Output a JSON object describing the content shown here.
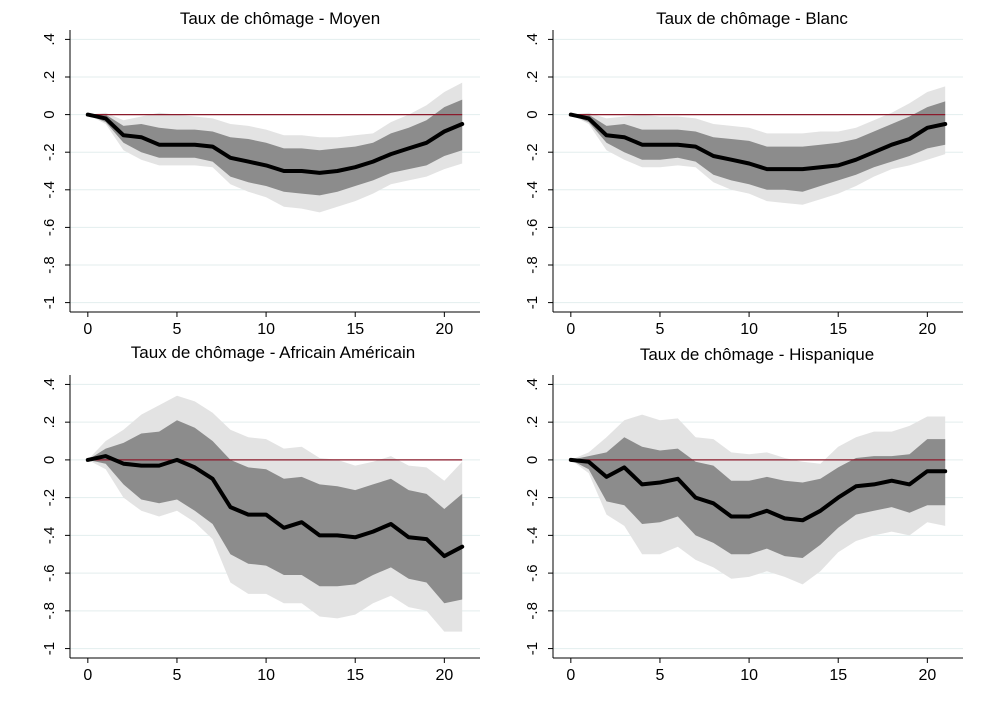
{
  "chart_data": [
    {
      "type": "line",
      "title": "Taux de chômage - Moyen",
      "x": [
        0,
        1,
        2,
        3,
        4,
        5,
        6,
        7,
        8,
        9,
        10,
        11,
        12,
        13,
        14,
        15,
        16,
        17,
        18,
        19,
        20,
        21
      ],
      "series": [
        {
          "role": "ci-outer-lower",
          "values": [
            0,
            -0.05,
            -0.19,
            -0.24,
            -0.27,
            -0.27,
            -0.27,
            -0.28,
            -0.37,
            -0.41,
            -0.44,
            -0.49,
            -0.5,
            -0.52,
            -0.49,
            -0.46,
            -0.42,
            -0.37,
            -0.35,
            -0.33,
            -0.29,
            -0.26
          ]
        },
        {
          "role": "ci-inner-lower",
          "values": [
            0,
            -0.04,
            -0.15,
            -0.2,
            -0.23,
            -0.23,
            -0.23,
            -0.25,
            -0.33,
            -0.36,
            -0.38,
            -0.41,
            -0.42,
            -0.43,
            -0.41,
            -0.38,
            -0.35,
            -0.31,
            -0.29,
            -0.27,
            -0.22,
            -0.19
          ]
        },
        {
          "role": "estimate",
          "values": [
            0,
            -0.02,
            -0.11,
            -0.12,
            -0.16,
            -0.16,
            -0.16,
            -0.17,
            -0.23,
            -0.25,
            -0.27,
            -0.3,
            -0.3,
            -0.31,
            -0.3,
            -0.28,
            -0.25,
            -0.21,
            -0.18,
            -0.15,
            -0.09,
            -0.05
          ]
        },
        {
          "role": "ci-inner-upper",
          "values": [
            0,
            0,
            -0.06,
            -0.05,
            -0.07,
            -0.08,
            -0.08,
            -0.09,
            -0.12,
            -0.13,
            -0.15,
            -0.18,
            -0.18,
            -0.19,
            -0.18,
            -0.17,
            -0.15,
            -0.1,
            -0.07,
            -0.03,
            0.04,
            0.08
          ]
        },
        {
          "role": "ci-outer-upper",
          "values": [
            0,
            0.01,
            -0.03,
            -0.01,
            0.01,
            0,
            -0.01,
            -0.02,
            -0.05,
            -0.06,
            -0.08,
            -0.11,
            -0.11,
            -0.12,
            -0.12,
            -0.11,
            -0.1,
            -0.04,
            0,
            0.05,
            0.12,
            0.17
          ]
        }
      ],
      "reference_line": 0,
      "xlim": [
        -1,
        22
      ],
      "ylim": [
        -1.05,
        0.45
      ],
      "xticks": [
        0,
        5,
        10,
        15,
        20
      ],
      "xtick_labels": [
        "0",
        "5",
        "10",
        "15",
        "20"
      ],
      "yticks": [
        0.4,
        0.2,
        0,
        -0.2,
        -0.4,
        -0.6,
        -0.8,
        -1
      ],
      "ytick_labels": [
        ".4",
        ".2",
        "0",
        "-.2",
        "-.4",
        "-.6",
        "-.8",
        "-1"
      ],
      "grid": "horizontal"
    },
    {
      "type": "line",
      "title": "Taux de chômage - Blanc",
      "x": [
        0,
        1,
        2,
        3,
        4,
        5,
        6,
        7,
        8,
        9,
        10,
        11,
        12,
        13,
        14,
        15,
        16,
        17,
        18,
        19,
        20,
        21
      ],
      "series": [
        {
          "role": "ci-outer-lower",
          "values": [
            0,
            -0.05,
            -0.19,
            -0.24,
            -0.28,
            -0.28,
            -0.27,
            -0.28,
            -0.36,
            -0.4,
            -0.42,
            -0.46,
            -0.47,
            -0.48,
            -0.45,
            -0.42,
            -0.38,
            -0.33,
            -0.29,
            -0.27,
            -0.24,
            -0.21
          ]
        },
        {
          "role": "ci-inner-lower",
          "values": [
            0,
            -0.04,
            -0.15,
            -0.2,
            -0.24,
            -0.24,
            -0.23,
            -0.25,
            -0.32,
            -0.35,
            -0.37,
            -0.4,
            -0.4,
            -0.41,
            -0.38,
            -0.35,
            -0.32,
            -0.28,
            -0.25,
            -0.22,
            -0.18,
            -0.16
          ]
        },
        {
          "role": "estimate",
          "values": [
            0,
            -0.02,
            -0.11,
            -0.12,
            -0.16,
            -0.16,
            -0.16,
            -0.17,
            -0.22,
            -0.24,
            -0.26,
            -0.29,
            -0.29,
            -0.29,
            -0.28,
            -0.27,
            -0.24,
            -0.2,
            -0.16,
            -0.13,
            -0.07,
            -0.05
          ]
        },
        {
          "role": "ci-inner-upper",
          "values": [
            0,
            0,
            -0.06,
            -0.05,
            -0.08,
            -0.08,
            -0.08,
            -0.09,
            -0.12,
            -0.13,
            -0.14,
            -0.17,
            -0.17,
            -0.17,
            -0.16,
            -0.15,
            -0.13,
            -0.09,
            -0.05,
            -0.01,
            0.04,
            0.07
          ]
        },
        {
          "role": "ci-outer-upper",
          "values": [
            0,
            0.01,
            -0.02,
            -0.01,
            0,
            -0.01,
            -0.01,
            -0.02,
            -0.05,
            -0.06,
            -0.07,
            -0.1,
            -0.1,
            -0.1,
            -0.09,
            -0.09,
            -0.07,
            -0.03,
            0.01,
            0.06,
            0.12,
            0.15
          ]
        }
      ],
      "reference_line": 0,
      "xlim": [
        -1,
        22
      ],
      "ylim": [
        -1.05,
        0.45
      ],
      "xticks": [
        0,
        5,
        10,
        15,
        20
      ],
      "xtick_labels": [
        "0",
        "5",
        "10",
        "15",
        "20"
      ],
      "yticks": [
        0.4,
        0.2,
        0,
        -0.2,
        -0.4,
        -0.6,
        -0.8,
        -1
      ],
      "ytick_labels": [
        ".4",
        ".2",
        "0",
        "-.2",
        "-.4",
        "-.6",
        "-.8",
        "-1"
      ],
      "grid": "horizontal"
    },
    {
      "type": "line",
      "title": "Taux de chômage - Africain Américain",
      "x": [
        0,
        1,
        2,
        3,
        4,
        5,
        6,
        7,
        8,
        9,
        10,
        11,
        12,
        13,
        14,
        15,
        16,
        17,
        18,
        19,
        20,
        21
      ],
      "series": [
        {
          "role": "ci-outer-lower",
          "values": [
            0,
            -0.05,
            -0.2,
            -0.27,
            -0.3,
            -0.27,
            -0.33,
            -0.42,
            -0.65,
            -0.71,
            -0.71,
            -0.76,
            -0.76,
            -0.83,
            -0.84,
            -0.82,
            -0.76,
            -0.72,
            -0.78,
            -0.8,
            -0.91,
            -0.91
          ]
        },
        {
          "role": "ci-inner-lower",
          "values": [
            0,
            -0.02,
            -0.13,
            -0.21,
            -0.23,
            -0.21,
            -0.27,
            -0.34,
            -0.5,
            -0.55,
            -0.56,
            -0.61,
            -0.61,
            -0.67,
            -0.67,
            -0.66,
            -0.61,
            -0.57,
            -0.63,
            -0.65,
            -0.76,
            -0.74
          ]
        },
        {
          "role": "estimate",
          "values": [
            0,
            0.02,
            -0.02,
            -0.03,
            -0.03,
            0,
            -0.04,
            -0.1,
            -0.25,
            -0.29,
            -0.29,
            -0.36,
            -0.33,
            -0.4,
            -0.4,
            -0.41,
            -0.38,
            -0.34,
            -0.41,
            -0.42,
            -0.51,
            -0.46
          ]
        },
        {
          "role": "ci-inner-upper",
          "values": [
            0,
            0.06,
            0.09,
            0.14,
            0.15,
            0.21,
            0.17,
            0.1,
            0,
            -0.04,
            -0.05,
            -0.1,
            -0.09,
            -0.13,
            -0.14,
            -0.16,
            -0.13,
            -0.1,
            -0.16,
            -0.18,
            -0.26,
            -0.18
          ]
        },
        {
          "role": "ci-outer-upper",
          "values": [
            0,
            0.1,
            0.16,
            0.24,
            0.29,
            0.34,
            0.31,
            0.25,
            0.16,
            0.12,
            0.11,
            0.06,
            0.07,
            0.01,
            0,
            -0.03,
            -0.01,
            0.02,
            -0.03,
            -0.04,
            -0.11,
            -0.01
          ]
        }
      ],
      "reference_line": 0,
      "xlim": [
        -1,
        22
      ],
      "ylim": [
        -1.05,
        0.45
      ],
      "xticks": [
        0,
        5,
        10,
        15,
        20
      ],
      "xtick_labels": [
        "0",
        "5",
        "10",
        "15",
        "20"
      ],
      "yticks": [
        0.4,
        0.2,
        0,
        -0.2,
        -0.4,
        -0.6,
        -0.8,
        -1
      ],
      "ytick_labels": [
        ".4",
        ".2",
        "0",
        "-.2",
        "-.4",
        "-.6",
        "-.8",
        "-1"
      ],
      "grid": "horizontal"
    },
    {
      "type": "line",
      "title": "Taux de chômage - Hispanique",
      "x": [
        0,
        1,
        2,
        3,
        4,
        5,
        6,
        7,
        8,
        9,
        10,
        11,
        12,
        13,
        14,
        15,
        16,
        17,
        18,
        19,
        20,
        21
      ],
      "series": [
        {
          "role": "ci-outer-lower",
          "values": [
            0,
            -0.07,
            -0.29,
            -0.35,
            -0.5,
            -0.5,
            -0.46,
            -0.53,
            -0.57,
            -0.63,
            -0.62,
            -0.59,
            -0.62,
            -0.66,
            -0.59,
            -0.49,
            -0.43,
            -0.4,
            -0.38,
            -0.4,
            -0.33,
            -0.35
          ]
        },
        {
          "role": "ci-inner-lower",
          "values": [
            0,
            -0.05,
            -0.22,
            -0.24,
            -0.34,
            -0.33,
            -0.3,
            -0.4,
            -0.44,
            -0.5,
            -0.5,
            -0.47,
            -0.51,
            -0.52,
            -0.45,
            -0.36,
            -0.29,
            -0.27,
            -0.25,
            -0.28,
            -0.24,
            -0.24
          ]
        },
        {
          "role": "estimate",
          "values": [
            0,
            -0.01,
            -0.09,
            -0.04,
            -0.13,
            -0.12,
            -0.1,
            -0.2,
            -0.23,
            -0.3,
            -0.3,
            -0.27,
            -0.31,
            -0.32,
            -0.27,
            -0.2,
            -0.14,
            -0.13,
            -0.11,
            -0.13,
            -0.06,
            -0.06
          ]
        },
        {
          "role": "ci-inner-upper",
          "values": [
            0,
            0.02,
            0.04,
            0.12,
            0.07,
            0.05,
            0.06,
            -0.01,
            -0.03,
            -0.11,
            -0.11,
            -0.09,
            -0.11,
            -0.12,
            -0.1,
            -0.04,
            0.01,
            0.02,
            0.02,
            0.03,
            0.11,
            0.11
          ]
        },
        {
          "role": "ci-outer-upper",
          "values": [
            0,
            0.04,
            0.12,
            0.21,
            0.24,
            0.21,
            0.22,
            0.12,
            0.11,
            0.04,
            0.03,
            0.04,
            0.01,
            -0.01,
            -0.02,
            0.07,
            0.12,
            0.15,
            0.15,
            0.18,
            0.23,
            0.23
          ]
        }
      ],
      "reference_line": 0,
      "xlim": [
        -1,
        22
      ],
      "ylim": [
        -1.05,
        0.45
      ],
      "xticks": [
        0,
        5,
        10,
        15,
        20
      ],
      "xtick_labels": [
        "0",
        "5",
        "10",
        "15",
        "20"
      ],
      "yticks": [
        0.4,
        0.2,
        0,
        -0.2,
        -0.4,
        -0.6,
        -0.8,
        -1
      ],
      "ytick_labels": [
        ".4",
        ".2",
        "0",
        "-.2",
        "-.4",
        "-.6",
        "-.8",
        "-1"
      ],
      "grid": "horizontal"
    }
  ],
  "colors": {
    "outer_band": "#e3e3e3",
    "inner_band": "#8c8c8c",
    "estimate": "#000000",
    "zero_line": "#8b1a2b",
    "grid": "#e3eeee",
    "axis": "#000000"
  }
}
